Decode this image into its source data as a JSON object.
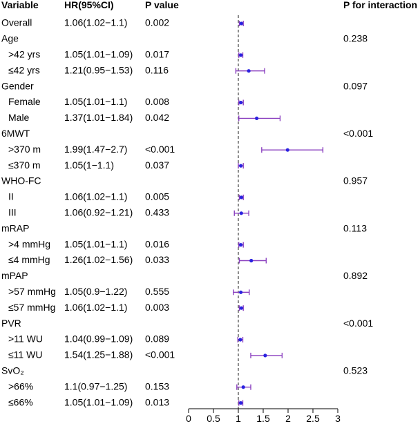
{
  "chart_data": {
    "type": "forest",
    "headers": {
      "variable": "Variable",
      "hr": "HR(95%CI)",
      "p": "P value",
      "p_interaction": "P for interaction"
    },
    "rows": [
      {
        "label": "Overall",
        "sub": false,
        "hr_text": "1.06(1.02−1.1)",
        "p": "0.002",
        "pint": "",
        "est": 1.06,
        "lo": 1.02,
        "hi": 1.1
      },
      {
        "label": "Age",
        "sub": false,
        "hr_text": "",
        "p": "",
        "pint": "0.238"
      },
      {
        "label": ">42 yrs",
        "sub": true,
        "hr_text": "1.05(1.01−1.09)",
        "p": "0.017",
        "pint": "",
        "est": 1.05,
        "lo": 1.01,
        "hi": 1.09
      },
      {
        "label": "≤42 yrs",
        "sub": true,
        "hr_text": "1.21(0.95−1.53)",
        "p": "0.116",
        "pint": "",
        "est": 1.21,
        "lo": 0.95,
        "hi": 1.53
      },
      {
        "label": "Gender",
        "sub": false,
        "hr_text": "",
        "p": "",
        "pint": "0.097"
      },
      {
        "label": "Female",
        "sub": true,
        "hr_text": "1.05(1.01−1.1)",
        "p": "0.008",
        "pint": "",
        "est": 1.05,
        "lo": 1.01,
        "hi": 1.1
      },
      {
        "label": "Male",
        "sub": true,
        "hr_text": "1.37(1.01−1.84)",
        "p": "0.042",
        "pint": "",
        "est": 1.37,
        "lo": 1.01,
        "hi": 1.84
      },
      {
        "label": "6MWT",
        "sub": false,
        "hr_text": "",
        "p": "",
        "pint": "<0.001"
      },
      {
        "label": ">370 m",
        "sub": true,
        "hr_text": "1.99(1.47−2.7)",
        "p": "<0.001",
        "pint": "",
        "est": 1.99,
        "lo": 1.47,
        "hi": 2.7
      },
      {
        "label": "≤370 m",
        "sub": true,
        "hr_text": "1.05(1−1.1)",
        "p": "0.037",
        "pint": "",
        "est": 1.05,
        "lo": 1.0,
        "hi": 1.1
      },
      {
        "label": "WHO-FC",
        "sub": false,
        "hr_text": "",
        "p": "",
        "pint": "0.957"
      },
      {
        "label": "II",
        "sub": true,
        "hr_text": "1.06(1.02−1.1)",
        "p": "0.005",
        "pint": "",
        "est": 1.06,
        "lo": 1.02,
        "hi": 1.1
      },
      {
        "label": "III",
        "sub": true,
        "hr_text": "1.06(0.92−1.21)",
        "p": "0.433",
        "pint": "",
        "est": 1.06,
        "lo": 0.92,
        "hi": 1.21
      },
      {
        "label": "mRAP",
        "sub": false,
        "hr_text": "",
        "p": "",
        "pint": "0.113"
      },
      {
        "label": ">4 mmHg",
        "sub": true,
        "hr_text": "1.05(1.01−1.1)",
        "p": "0.016",
        "pint": "",
        "est": 1.05,
        "lo": 1.01,
        "hi": 1.1
      },
      {
        "label": "≤4 mmHg",
        "sub": true,
        "hr_text": "1.26(1.02−1.56)",
        "p": "0.033",
        "pint": "",
        "est": 1.26,
        "lo": 1.02,
        "hi": 1.56
      },
      {
        "label": "mPAP",
        "sub": false,
        "hr_text": "",
        "p": "",
        "pint": "0.892"
      },
      {
        "label": ">57 mmHg",
        "sub": true,
        "hr_text": "1.05(0.9−1.22)",
        "p": "0.555",
        "pint": "",
        "est": 1.05,
        "lo": 0.9,
        "hi": 1.22
      },
      {
        "label": "≤57 mmHg",
        "sub": true,
        "hr_text": "1.06(1.02−1.1)",
        "p": "0.003",
        "pint": "",
        "est": 1.06,
        "lo": 1.02,
        "hi": 1.1
      },
      {
        "label": "PVR",
        "sub": false,
        "hr_text": "",
        "p": "",
        "pint": "<0.001"
      },
      {
        "label": ">11 WU",
        "sub": true,
        "hr_text": "1.04(0.99−1.09)",
        "p": "0.089",
        "pint": "",
        "est": 1.04,
        "lo": 0.99,
        "hi": 1.09
      },
      {
        "label": "≤11 WU",
        "sub": true,
        "hr_text": "1.54(1.25−1.88)",
        "p": "<0.001",
        "pint": "",
        "est": 1.54,
        "lo": 1.25,
        "hi": 1.88
      },
      {
        "label": "SvO₂",
        "sub": false,
        "hr_text": "",
        "p": "",
        "pint": "0.523"
      },
      {
        "label": ">66%",
        "sub": true,
        "hr_text": "1.1(0.97−1.25)",
        "p": "0.153",
        "pint": "",
        "est": 1.1,
        "lo": 0.97,
        "hi": 1.25
      },
      {
        "label": "≤66%",
        "sub": true,
        "hr_text": "1.05(1.01−1.09)",
        "p": "0.013",
        "pint": "",
        "est": 1.05,
        "lo": 1.01,
        "hi": 1.09
      }
    ],
    "x_axis": {
      "ticks": [
        0,
        0.5,
        1,
        1.5,
        2,
        2.5,
        3
      ],
      "tick_labels": [
        "0",
        "0.5",
        "1",
        "1.5",
        "2",
        "2.5",
        "3"
      ],
      "xlim": [
        0,
        3
      ],
      "reference_line": 1
    },
    "colors": {
      "ci_line": "#8a3fbf",
      "point": "#2a22e0",
      "reference": "#444444",
      "axis": "#000000"
    }
  }
}
